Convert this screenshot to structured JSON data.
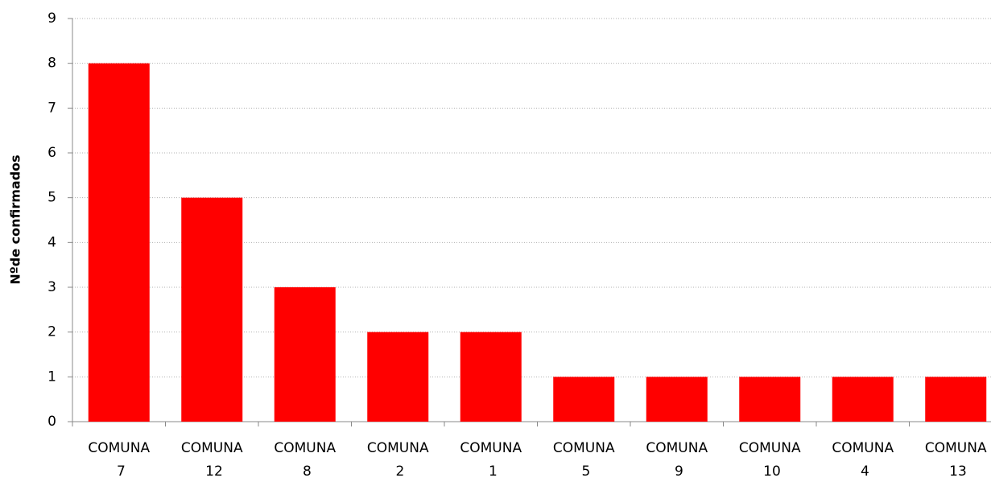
{
  "chart_data": {
    "type": "bar",
    "y_label": "Nºde confirmados",
    "categories": [
      "COMUNA 7",
      "COMUNA 12",
      "COMUNA 8",
      "COMUNA 2",
      "COMUNA 1",
      "COMUNA 5",
      "COMUNA 9",
      "COMUNA 10",
      "COMUNA 4",
      "COMUNA 13"
    ],
    "values": [
      8,
      5,
      3,
      2,
      2,
      1,
      1,
      1,
      1,
      1
    ],
    "color": "#ff0000",
    "ylim": [
      0,
      9
    ],
    "yticks": [
      0,
      1,
      2,
      3,
      4,
      5,
      6,
      7,
      8,
      9
    ],
    "grid": true
  }
}
